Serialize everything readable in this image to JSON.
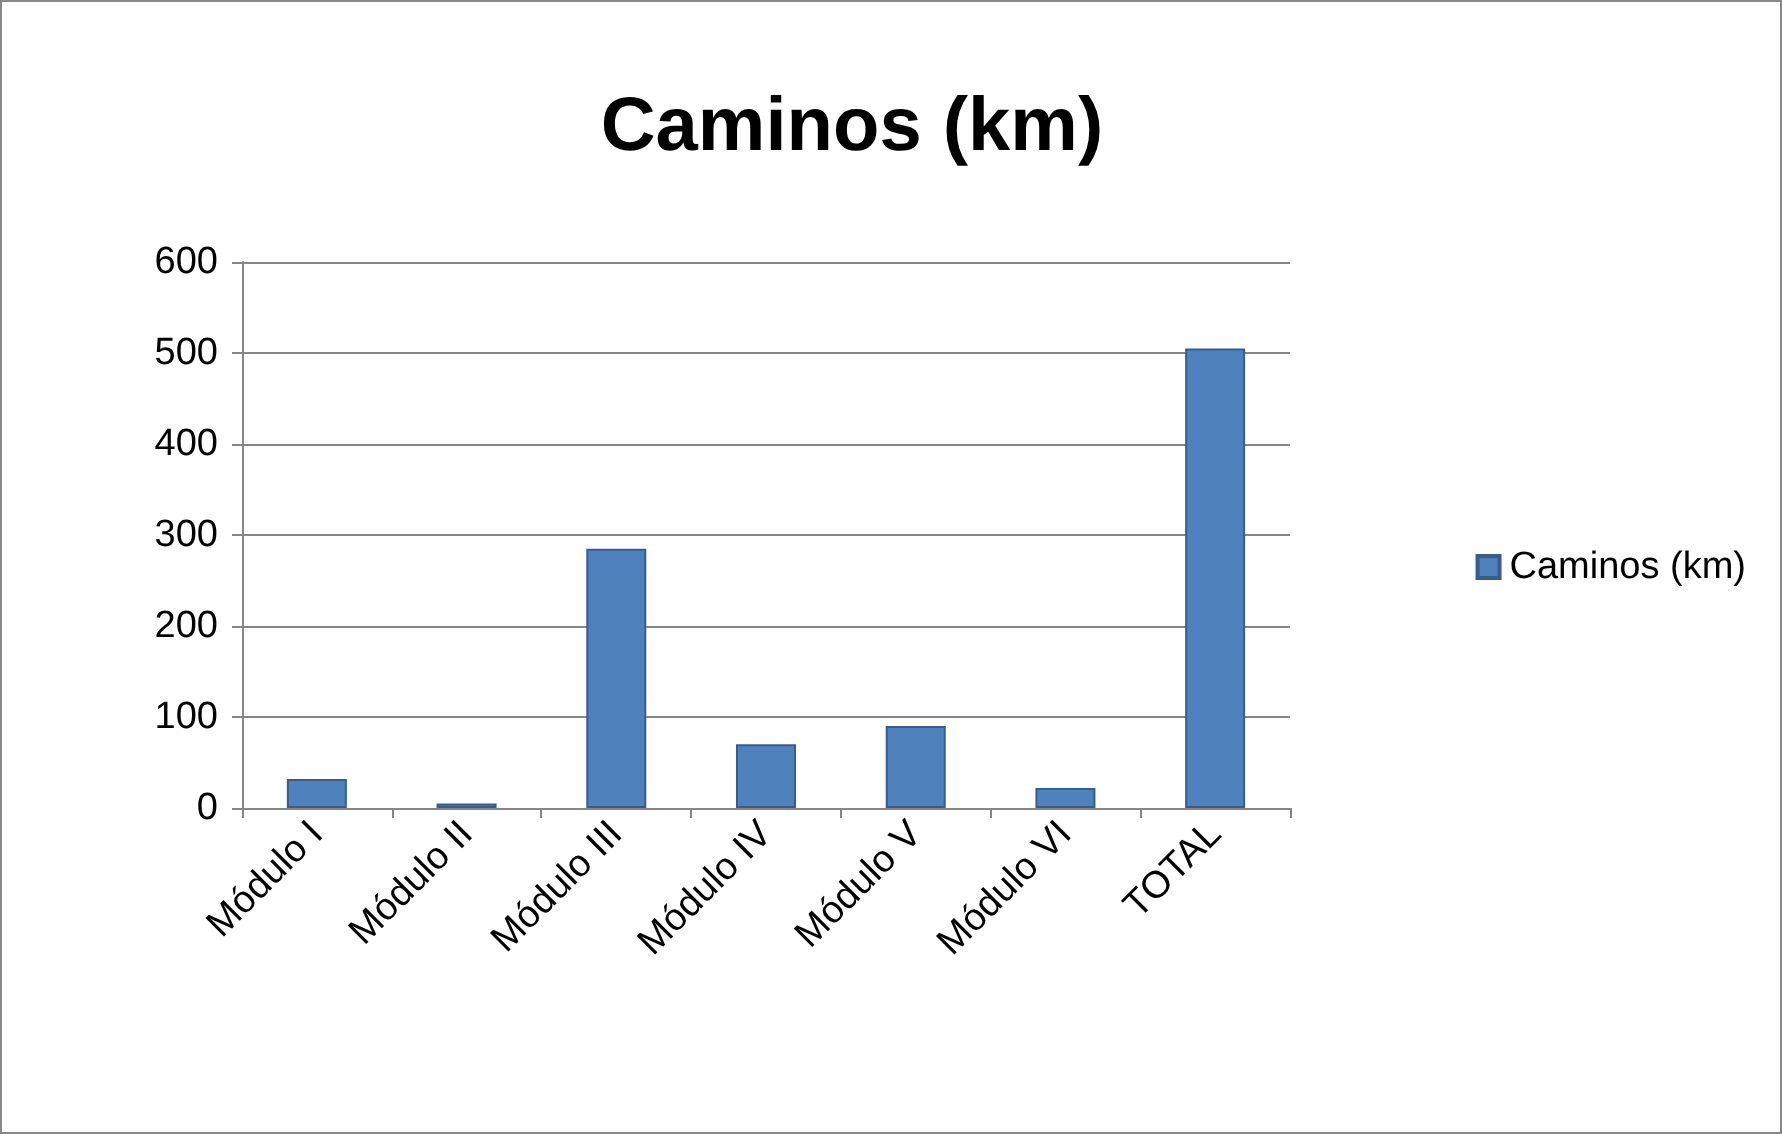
{
  "chart_data": {
    "type": "bar",
    "title": "Caminos (km)",
    "categories": [
      "Módulo I",
      "Módulo II",
      "Módulo III",
      "Módulo IV",
      "Módulo V",
      "Módulo VI",
      "TOTAL"
    ],
    "series": [
      {
        "name": "Caminos (km)",
        "color": "#4f81bd",
        "values": [
          32,
          5,
          285,
          70,
          90,
          22,
          505
        ]
      }
    ],
    "ylim": [
      0,
      600
    ],
    "yticks": [
      0,
      100,
      200,
      300,
      400,
      500,
      600
    ],
    "grid": "y",
    "legend": "right"
  }
}
